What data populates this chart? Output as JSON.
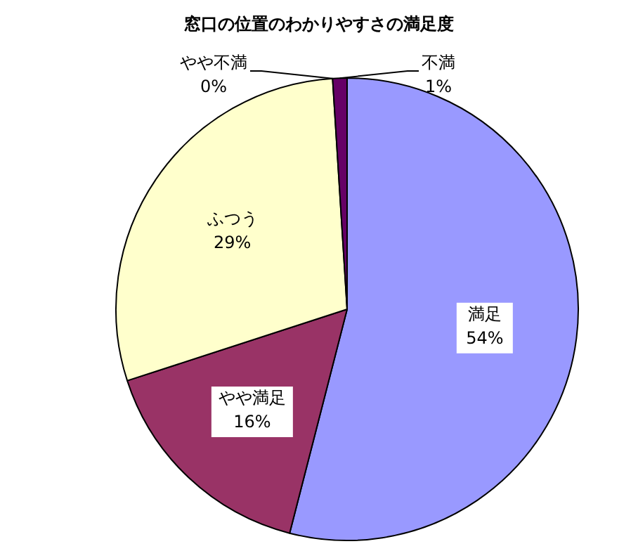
{
  "chart_data": {
    "type": "pie",
    "title": "窓口の位置のわかりやすさの満足度",
    "categories": [
      "満足",
      "やや満足",
      "ふつう",
      "やや不満",
      "不満"
    ],
    "values": [
      54,
      16,
      29,
      0,
      1
    ],
    "colors": [
      "#9999ff",
      "#993366",
      "#ffffcc",
      "#ccffff",
      "#660066"
    ],
    "value_labels": [
      "54%",
      "16%",
      "29%",
      "0%",
      "1%"
    ],
    "legend": false
  }
}
